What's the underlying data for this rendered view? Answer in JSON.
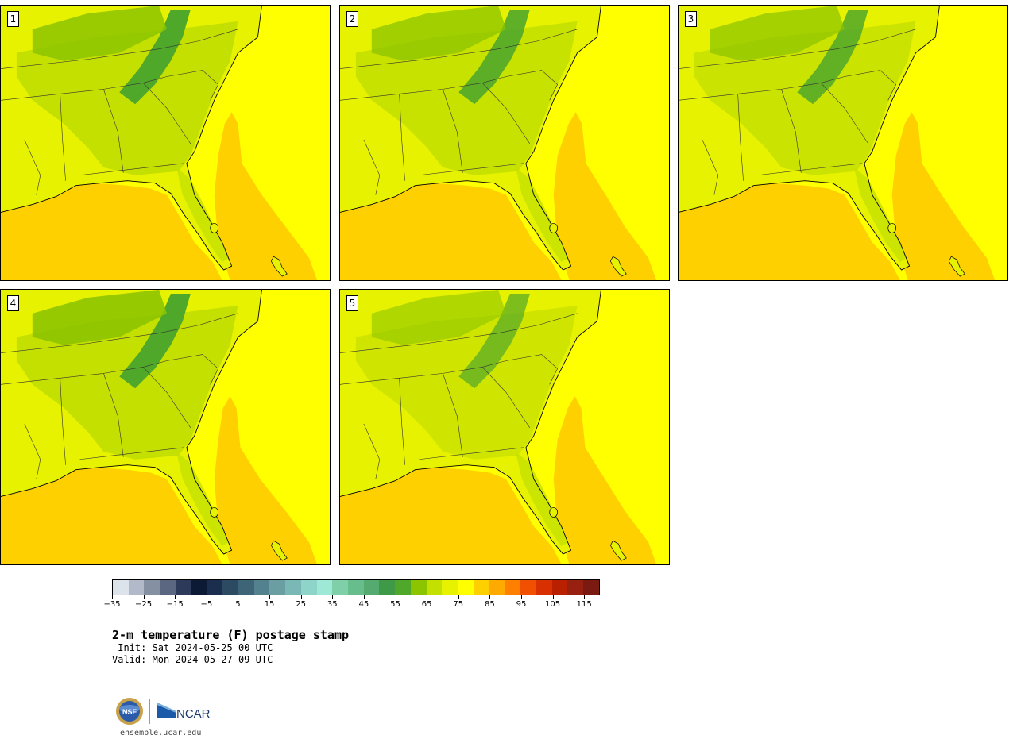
{
  "panels": [
    {
      "label": "1"
    },
    {
      "label": "2"
    },
    {
      "label": "3"
    },
    {
      "label": "4"
    },
    {
      "label": "5"
    }
  ],
  "colorbar": {
    "tick_values": [
      -35,
      -25,
      -15,
      -5,
      5,
      15,
      25,
      35,
      45,
      55,
      65,
      75,
      85,
      95,
      105,
      115
    ],
    "tick_labels": [
      "−35",
      "−25",
      "−15",
      "−5",
      "5",
      "15",
      "25",
      "35",
      "45",
      "55",
      "65",
      "75",
      "85",
      "95",
      "105",
      "115"
    ],
    "min": -35,
    "max": 120,
    "step": 5,
    "colors": [
      "#dde3ea",
      "#b2b9c8",
      "#8690a3",
      "#5b6680",
      "#2e3a5a",
      "#0d1a36",
      "#1c2e4d",
      "#2d4a63",
      "#3e6478",
      "#54818e",
      "#6b9ea3",
      "#7ab8b6",
      "#8ed4c8",
      "#9ee8d6",
      "#7fd0a8",
      "#68bd8c",
      "#55aa70",
      "#3f9a48",
      "#50a82a",
      "#8cc400",
      "#c4e000",
      "#e6f200",
      "#ffff00",
      "#ffd000",
      "#ffaa00",
      "#ff7f00",
      "#f05000",
      "#d83000",
      "#b82000",
      "#982010",
      "#7a1a10"
    ]
  },
  "title": "2-m temperature (F) postage stamp",
  "init": " Init: Sat 2024-05-25 00 UTC",
  "valid": "Valid: Mon 2024-05-27 09 UTC",
  "site": "ensemble.ucar.edu",
  "logos": {
    "nsf": "NSF",
    "ncar": "NCAR"
  },
  "map_colors": {
    "gulf": "#ffd000",
    "ocean": "#ffff00",
    "land_warm": "#e6f200",
    "land_mid": "#c4e000",
    "land_cool": "#8cc400",
    "mountains": "#50a82a"
  }
}
